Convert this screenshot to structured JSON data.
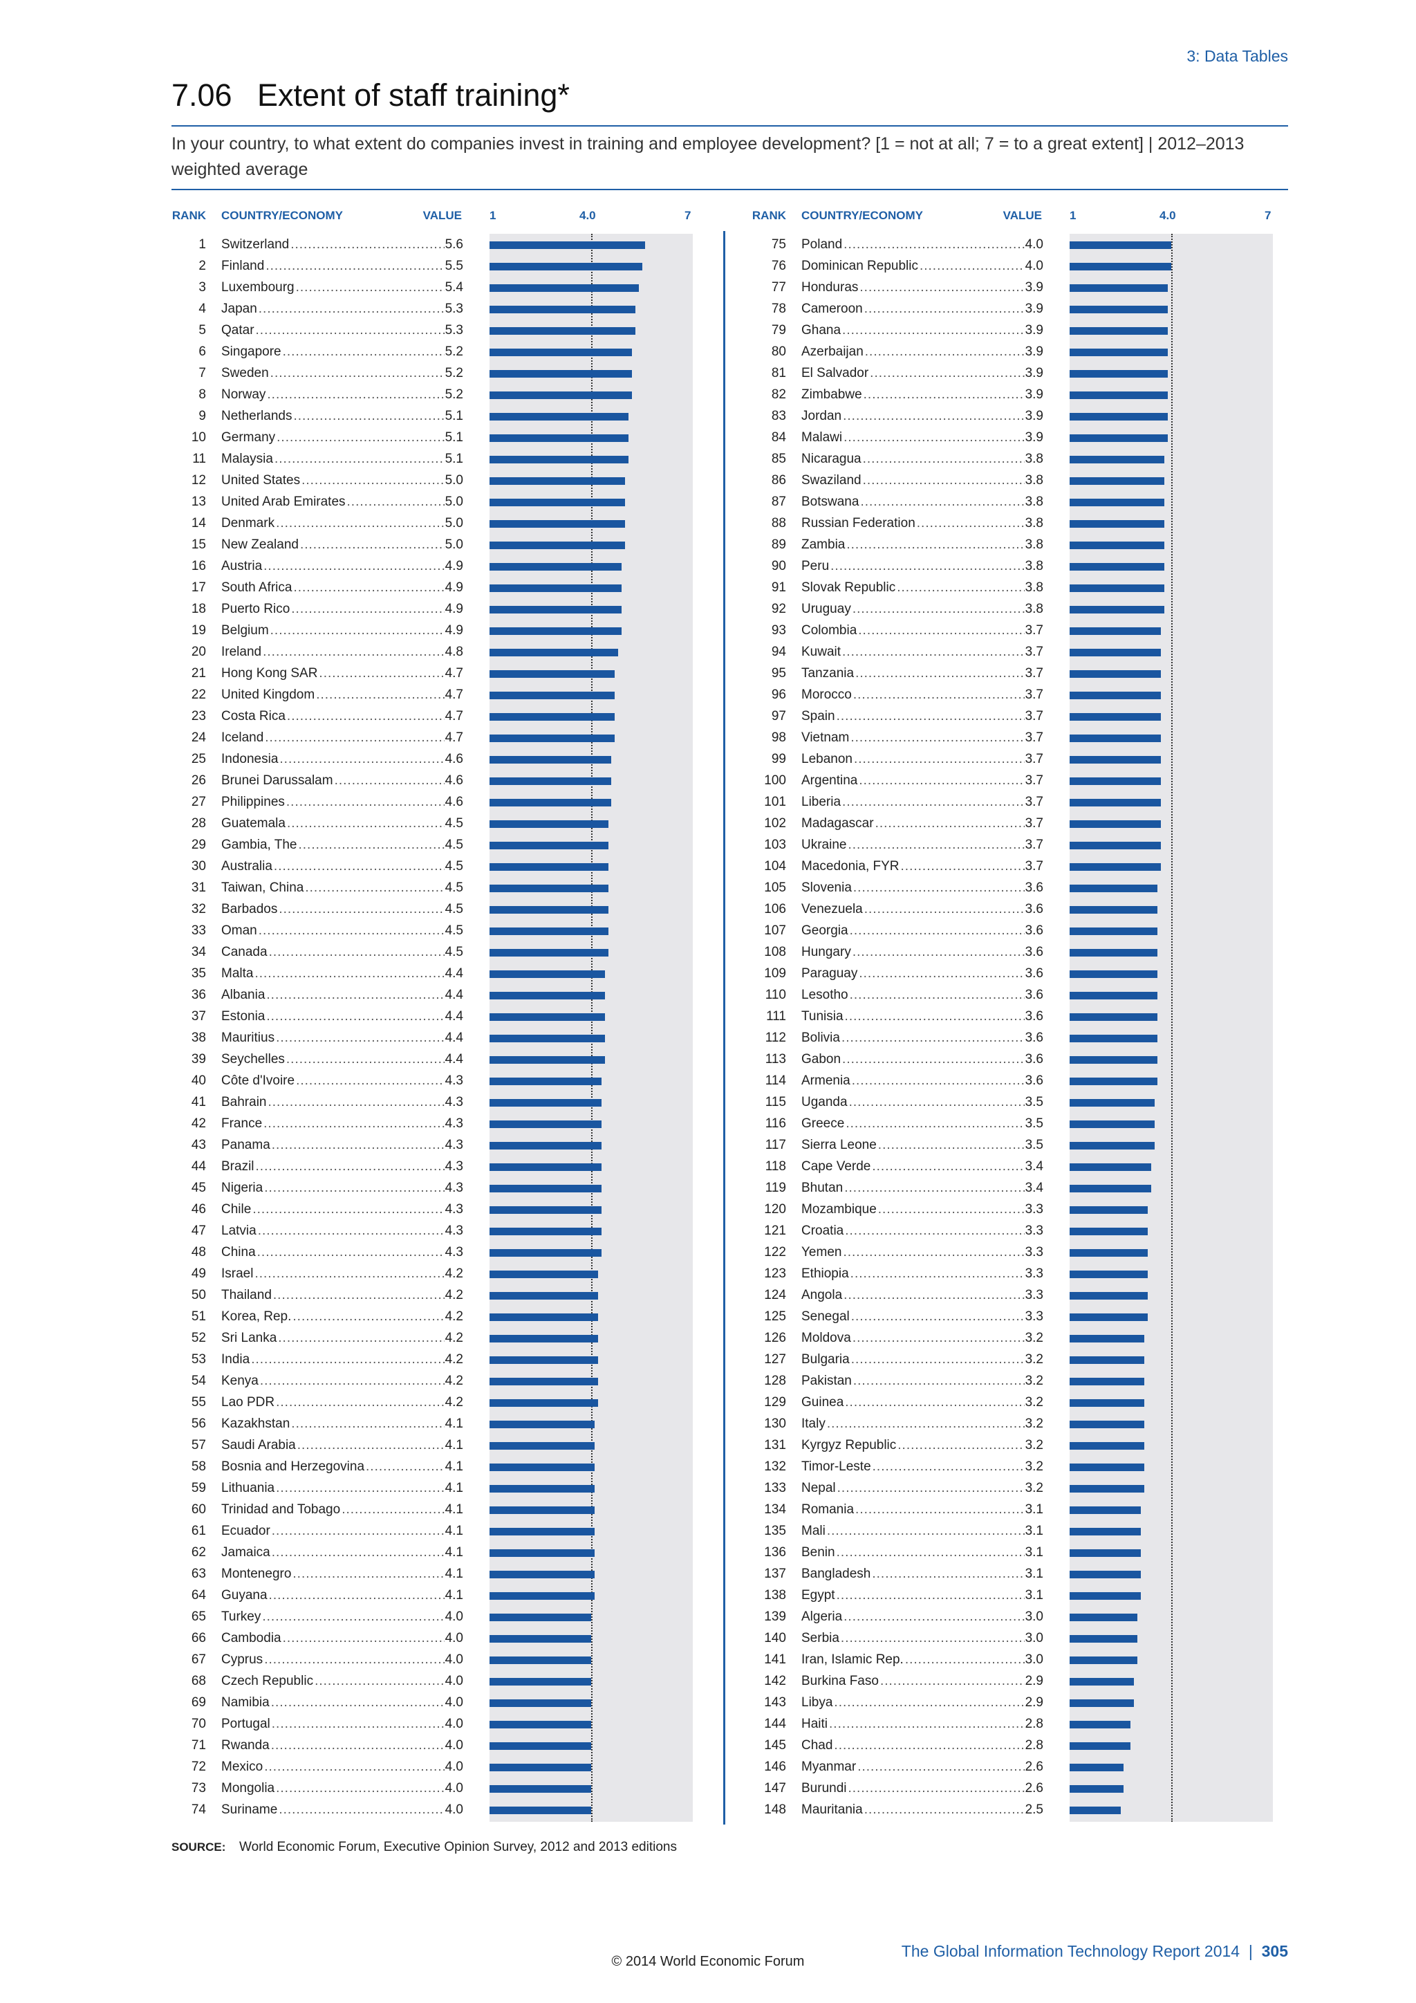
{
  "section_label": "3: Data Tables",
  "table_number": "7.06",
  "title": "Extent of staff training*",
  "subtitle": "In your country, to what extent do companies invest in training and employee development? [1 = not at all; 7 = to a great extent]  |  2012–2013 weighted average",
  "headers": {
    "rank": "RANK",
    "country": "COUNTRY/ECONOMY",
    "value": "VALUE",
    "scale_min": "1",
    "scale_mid": "4.0",
    "scale_max": "7"
  },
  "source_label": "SOURCE:",
  "source_text": "World Economic Forum, Executive Opinion Survey, 2012 and 2013 editions",
  "footer_report": "The Global Information Technology Report 2014",
  "footer_separator": "|",
  "page_number": "305",
  "copyright": "© 2014 World Economic Forum",
  "colors": {
    "accent": "#1f5fa6",
    "bar": "#1a56a0",
    "plot_background": "#e7e7ea"
  },
  "chart_data": {
    "type": "bar",
    "orientation": "horizontal",
    "xlim": [
      1,
      7
    ],
    "reference_line": 4.0,
    "categories": [
      "Switzerland",
      "Finland",
      "Luxembourg",
      "Japan",
      "Qatar",
      "Singapore",
      "Sweden",
      "Norway",
      "Netherlands",
      "Germany",
      "Malaysia",
      "United States",
      "United Arab Emirates",
      "Denmark",
      "New Zealand",
      "Austria",
      "South Africa",
      "Puerto Rico",
      "Belgium",
      "Ireland",
      "Hong Kong SAR",
      "United Kingdom",
      "Costa Rica",
      "Iceland",
      "Indonesia",
      "Brunei Darussalam",
      "Philippines",
      "Guatemala",
      "Gambia, The",
      "Australia",
      "Taiwan, China",
      "Barbados",
      "Oman",
      "Canada",
      "Malta",
      "Albania",
      "Estonia",
      "Mauritius",
      "Seychelles",
      "Côte d'Ivoire",
      "Bahrain",
      "France",
      "Panama",
      "Brazil",
      "Nigeria",
      "Chile",
      "Latvia",
      "China",
      "Israel",
      "Thailand",
      "Korea, Rep.",
      "Sri Lanka",
      "India",
      "Kenya",
      "Lao PDR",
      "Kazakhstan",
      "Saudi Arabia",
      "Bosnia and Herzegovina",
      "Lithuania",
      "Trinidad and Tobago",
      "Ecuador",
      "Jamaica",
      "Montenegro",
      "Guyana",
      "Turkey",
      "Cambodia",
      "Cyprus",
      "Czech Republic",
      "Namibia",
      "Portugal",
      "Rwanda",
      "Mexico",
      "Mongolia",
      "Suriname",
      "Poland",
      "Dominican Republic",
      "Honduras",
      "Cameroon",
      "Ghana",
      "Azerbaijan",
      "El Salvador",
      "Zimbabwe",
      "Jordan",
      "Malawi",
      "Nicaragua",
      "Swaziland",
      "Botswana",
      "Russian Federation",
      "Zambia",
      "Peru",
      "Slovak Republic",
      "Uruguay",
      "Colombia",
      "Kuwait",
      "Tanzania",
      "Morocco",
      "Spain",
      "Vietnam",
      "Lebanon",
      "Argentina",
      "Liberia",
      "Madagascar",
      "Ukraine",
      "Macedonia, FYR",
      "Slovenia",
      "Venezuela",
      "Georgia",
      "Hungary",
      "Paraguay",
      "Lesotho",
      "Tunisia",
      "Bolivia",
      "Gabon",
      "Armenia",
      "Uganda",
      "Greece",
      "Sierra Leone",
      "Cape Verde",
      "Bhutan",
      "Mozambique",
      "Croatia",
      "Yemen",
      "Ethiopia",
      "Angola",
      "Senegal",
      "Moldova",
      "Bulgaria",
      "Pakistan",
      "Guinea",
      "Italy",
      "Kyrgyz Republic",
      "Timor-Leste",
      "Nepal",
      "Romania",
      "Mali",
      "Benin",
      "Bangladesh",
      "Egypt",
      "Algeria",
      "Serbia",
      "Iran, Islamic Rep.",
      "Burkina Faso",
      "Libya",
      "Haiti",
      "Chad",
      "Myanmar",
      "Burundi",
      "Mauritania"
    ],
    "values": [
      "5.6",
      "5.5",
      "5.4",
      "5.3",
      "5.3",
      "5.2",
      "5.2",
      "5.2",
      "5.1",
      "5.1",
      "5.1",
      "5.0",
      "5.0",
      "5.0",
      "5.0",
      "4.9",
      "4.9",
      "4.9",
      "4.9",
      "4.8",
      "4.7",
      "4.7",
      "4.7",
      "4.7",
      "4.6",
      "4.6",
      "4.6",
      "4.5",
      "4.5",
      "4.5",
      "4.5",
      "4.5",
      "4.5",
      "4.5",
      "4.4",
      "4.4",
      "4.4",
      "4.4",
      "4.4",
      "4.3",
      "4.3",
      "4.3",
      "4.3",
      "4.3",
      "4.3",
      "4.3",
      "4.3",
      "4.3",
      "4.2",
      "4.2",
      "4.2",
      "4.2",
      "4.2",
      "4.2",
      "4.2",
      "4.1",
      "4.1",
      "4.1",
      "4.1",
      "4.1",
      "4.1",
      "4.1",
      "4.1",
      "4.1",
      "4.0",
      "4.0",
      "4.0",
      "4.0",
      "4.0",
      "4.0",
      "4.0",
      "4.0",
      "4.0",
      "4.0",
      "4.0",
      "4.0",
      "3.9",
      "3.9",
      "3.9",
      "3.9",
      "3.9",
      "3.9",
      "3.9",
      "3.9",
      "3.8",
      "3.8",
      "3.8",
      "3.8",
      "3.8",
      "3.8",
      "3.8",
      "3.8",
      "3.7",
      "3.7",
      "3.7",
      "3.7",
      "3.7",
      "3.7",
      "3.7",
      "3.7",
      "3.7",
      "3.7",
      "3.7",
      "3.7",
      "3.6",
      "3.6",
      "3.6",
      "3.6",
      "3.6",
      "3.6",
      "3.6",
      "3.6",
      "3.6",
      "3.6",
      "3.5",
      "3.5",
      "3.5",
      "3.4",
      "3.4",
      "3.3",
      "3.3",
      "3.3",
      "3.3",
      "3.3",
      "3.3",
      "3.2",
      "3.2",
      "3.2",
      "3.2",
      "3.2",
      "3.2",
      "3.2",
      "3.2",
      "3.1",
      "3.1",
      "3.1",
      "3.1",
      "3.1",
      "3.0",
      "3.0",
      "3.0",
      "2.9",
      "2.9",
      "2.8",
      "2.8",
      "2.6",
      "2.6",
      "2.5"
    ]
  }
}
